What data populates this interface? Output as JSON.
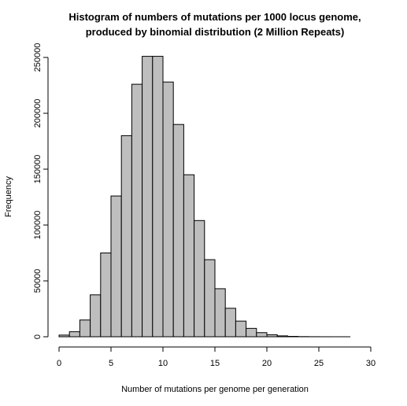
{
  "chart_data": {
    "type": "bar",
    "title_line1": "Histogram of numbers of mutations per 1000 locus genome,",
    "title_line2": "produced by binomial distribution (2 Million Repeats)",
    "xlabel": "Number of mutations per genome per generation",
    "ylabel": "Frequency",
    "xlim": [
      0,
      30
    ],
    "ylim": [
      0,
      250000
    ],
    "x_ticks": [
      "0",
      "5",
      "10",
      "15",
      "20",
      "25",
      "30"
    ],
    "y_ticks": [
      "0",
      "50000",
      "100000",
      "150000",
      "200000",
      "250000"
    ],
    "bin_width": 1,
    "bins": [
      {
        "x0": 0,
        "x1": 1,
        "count": 1500
      },
      {
        "x0": 1,
        "x1": 2,
        "count": 4500
      },
      {
        "x0": 2,
        "x1": 3,
        "count": 15000
      },
      {
        "x0": 3,
        "x1": 4,
        "count": 37500
      },
      {
        "x0": 4,
        "x1": 5,
        "count": 75000
      },
      {
        "x0": 5,
        "x1": 6,
        "count": 126000
      },
      {
        "x0": 6,
        "x1": 7,
        "count": 180000
      },
      {
        "x0": 7,
        "x1": 8,
        "count": 226000
      },
      {
        "x0": 8,
        "x1": 9,
        "count": 251000
      },
      {
        "x0": 9,
        "x1": 10,
        "count": 251000
      },
      {
        "x0": 10,
        "x1": 11,
        "count": 228000
      },
      {
        "x0": 11,
        "x1": 12,
        "count": 190000
      },
      {
        "x0": 12,
        "x1": 13,
        "count": 145000
      },
      {
        "x0": 13,
        "x1": 14,
        "count": 104000
      },
      {
        "x0": 14,
        "x1": 15,
        "count": 69000
      },
      {
        "x0": 15,
        "x1": 16,
        "count": 43000
      },
      {
        "x0": 16,
        "x1": 17,
        "count": 25500
      },
      {
        "x0": 17,
        "x1": 18,
        "count": 14000
      },
      {
        "x0": 18,
        "x1": 19,
        "count": 7500
      },
      {
        "x0": 19,
        "x1": 20,
        "count": 3700
      },
      {
        "x0": 20,
        "x1": 21,
        "count": 1800
      },
      {
        "x0": 21,
        "x1": 22,
        "count": 800
      },
      {
        "x0": 22,
        "x1": 23,
        "count": 350
      },
      {
        "x0": 23,
        "x1": 24,
        "count": 150
      },
      {
        "x0": 24,
        "x1": 25,
        "count": 60
      },
      {
        "x0": 25,
        "x1": 26,
        "count": 25
      },
      {
        "x0": 26,
        "x1": 27,
        "count": 10
      },
      {
        "x0": 27,
        "x1": 28,
        "count": 4
      },
      {
        "x0": 28,
        "x1": 29,
        "count": 2
      },
      {
        "x0": 29,
        "x1": 30,
        "count": 1
      }
    ],
    "bar_fill": "#bebebe",
    "bar_stroke": "#000000",
    "grid": false,
    "legend": "none"
  }
}
